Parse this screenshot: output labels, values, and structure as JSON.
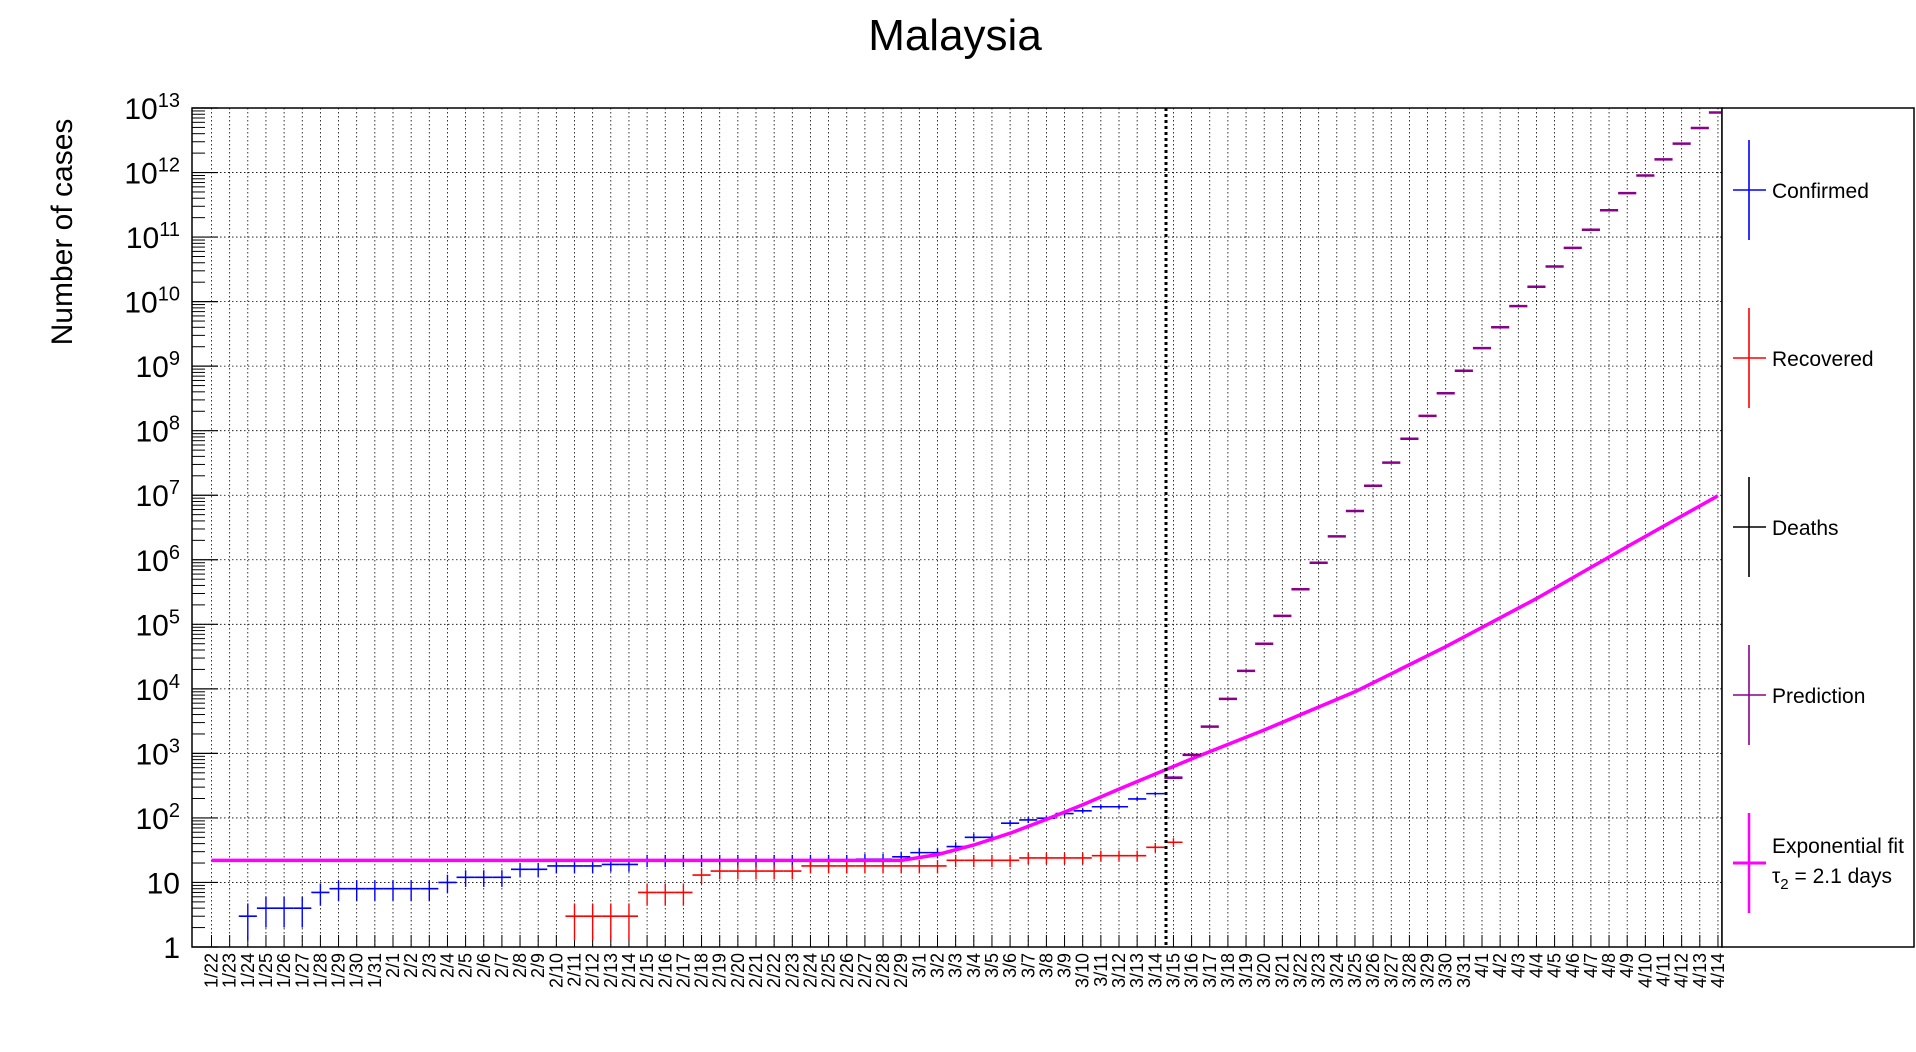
{
  "chart_data": {
    "type": "scatter",
    "title": "Malaysia",
    "ylabel": "Number of cases",
    "xlabel": "",
    "y_scale": "log",
    "ylim": [
      1,
      10000000000000
    ],
    "grid": true,
    "legend_position": "right",
    "y_ticks": [
      {
        "label": "1"
      },
      {
        "label": "10"
      },
      {
        "base": "10",
        "exp": "2"
      },
      {
        "base": "10",
        "exp": "3"
      },
      {
        "base": "10",
        "exp": "4"
      },
      {
        "base": "10",
        "exp": "5"
      },
      {
        "base": "10",
        "exp": "6"
      },
      {
        "base": "10",
        "exp": "7"
      },
      {
        "base": "10",
        "exp": "8"
      },
      {
        "base": "10",
        "exp": "9"
      },
      {
        "base": "10",
        "exp": "10"
      },
      {
        "base": "10",
        "exp": "11"
      },
      {
        "base": "10",
        "exp": "12"
      },
      {
        "base": "10",
        "exp": "13"
      }
    ],
    "x_labels": [
      "1/22",
      "1/23",
      "1/24",
      "1/25",
      "1/26",
      "1/27",
      "1/28",
      "1/29",
      "1/30",
      "1/31",
      "2/1",
      "2/2",
      "2/3",
      "2/4",
      "2/5",
      "2/6",
      "2/7",
      "2/8",
      "2/9",
      "2/10",
      "2/11",
      "2/12",
      "2/13",
      "2/14",
      "2/15",
      "2/16",
      "2/17",
      "2/18",
      "2/19",
      "2/20",
      "2/21",
      "2/22",
      "2/23",
      "2/24",
      "2/25",
      "2/26",
      "2/27",
      "2/28",
      "2/29",
      "3/1",
      "3/2",
      "3/3",
      "3/4",
      "3/5",
      "3/6",
      "3/7",
      "3/8",
      "3/9",
      "3/10",
      "3/11",
      "3/12",
      "3/13",
      "3/14",
      "3/15",
      "3/16",
      "3/17",
      "3/18",
      "3/19",
      "3/20",
      "3/21",
      "3/22",
      "3/23",
      "3/24",
      "3/25",
      "3/26",
      "3/27",
      "3/28",
      "3/29",
      "3/30",
      "3/31",
      "4/1",
      "4/2",
      "4/3",
      "4/4",
      "4/5",
      "4/6",
      "4/7",
      "4/8",
      "4/9",
      "4/10",
      "4/11",
      "4/12",
      "4/13",
      "4/14"
    ],
    "cutoff_date": "3/15",
    "series": [
      {
        "name": "Confirmed",
        "color": "#0000ff",
        "points": [
          [
            "1/24",
            3
          ],
          [
            "1/25",
            4
          ],
          [
            "1/26",
            4
          ],
          [
            "1/27",
            4
          ],
          [
            "1/28",
            7
          ],
          [
            "1/29",
            8
          ],
          [
            "1/30",
            8
          ],
          [
            "1/31",
            8
          ],
          [
            "2/1",
            8
          ],
          [
            "2/2",
            8
          ],
          [
            "2/3",
            8
          ],
          [
            "2/4",
            10
          ],
          [
            "2/5",
            12
          ],
          [
            "2/6",
            12
          ],
          [
            "2/7",
            12
          ],
          [
            "2/8",
            16
          ],
          [
            "2/9",
            16
          ],
          [
            "2/10",
            18
          ],
          [
            "2/11",
            18
          ],
          [
            "2/12",
            18
          ],
          [
            "2/13",
            19
          ],
          [
            "2/14",
            19
          ],
          [
            "2/15",
            22
          ],
          [
            "2/16",
            22
          ],
          [
            "2/17",
            22
          ],
          [
            "2/18",
            22
          ],
          [
            "2/19",
            22
          ],
          [
            "2/20",
            22
          ],
          [
            "2/21",
            22
          ],
          [
            "2/22",
            22
          ],
          [
            "2/23",
            22
          ],
          [
            "2/24",
            22
          ],
          [
            "2/25",
            22
          ],
          [
            "2/26",
            22
          ],
          [
            "2/27",
            23
          ],
          [
            "2/28",
            23
          ],
          [
            "2/29",
            25
          ],
          [
            "3/1",
            29
          ],
          [
            "3/2",
            29
          ],
          [
            "3/3",
            36
          ],
          [
            "3/4",
            50
          ],
          [
            "3/5",
            50
          ],
          [
            "3/6",
            83
          ],
          [
            "3/7",
            93
          ],
          [
            "3/8",
            99
          ],
          [
            "3/9",
            117
          ],
          [
            "3/10",
            129
          ],
          [
            "3/11",
            149
          ],
          [
            "3/12",
            149
          ],
          [
            "3/13",
            197
          ],
          [
            "3/14",
            238
          ],
          [
            "3/15",
            428
          ]
        ]
      },
      {
        "name": "Recovered",
        "color": "#ff0000",
        "points": [
          [
            "2/11",
            3
          ],
          [
            "2/12",
            3
          ],
          [
            "2/13",
            3
          ],
          [
            "2/14",
            3
          ],
          [
            "2/15",
            7
          ],
          [
            "2/16",
            7
          ],
          [
            "2/17",
            7
          ],
          [
            "2/18",
            13
          ],
          [
            "2/19",
            15
          ],
          [
            "2/20",
            15
          ],
          [
            "2/21",
            15
          ],
          [
            "2/22",
            15
          ],
          [
            "2/23",
            15
          ],
          [
            "2/24",
            18
          ],
          [
            "2/25",
            18
          ],
          [
            "2/26",
            18
          ],
          [
            "2/27",
            18
          ],
          [
            "2/28",
            18
          ],
          [
            "2/29",
            18
          ],
          [
            "3/1",
            18
          ],
          [
            "3/2",
            18
          ],
          [
            "3/3",
            22
          ],
          [
            "3/4",
            22
          ],
          [
            "3/5",
            22
          ],
          [
            "3/6",
            22
          ],
          [
            "3/7",
            24
          ],
          [
            "3/8",
            24
          ],
          [
            "3/9",
            24
          ],
          [
            "3/10",
            24
          ],
          [
            "3/11",
            26
          ],
          [
            "3/12",
            26
          ],
          [
            "3/13",
            26
          ],
          [
            "3/14",
            35
          ],
          [
            "3/15",
            42
          ]
        ]
      },
      {
        "name": "Deaths",
        "color": "#000000",
        "points": []
      },
      {
        "name": "Prediction",
        "color": "#8b008b",
        "points": [
          [
            "3/15",
            420
          ],
          [
            "3/16",
            950
          ],
          [
            "3/17",
            2600
          ],
          [
            "3/18",
            7000
          ],
          [
            "3/19",
            19000
          ],
          [
            "3/20",
            50000
          ],
          [
            "3/21",
            135000
          ],
          [
            "3/22",
            350000
          ],
          [
            "3/23",
            900000
          ],
          [
            "3/24",
            2300000
          ],
          [
            "3/25",
            5700000
          ],
          [
            "3/26",
            14000000
          ],
          [
            "3/27",
            32000000
          ],
          [
            "3/28",
            75000000
          ],
          [
            "3/29",
            170000000
          ],
          [
            "3/30",
            380000000
          ],
          [
            "3/31",
            850000000
          ],
          [
            "4/1",
            1900000000
          ],
          [
            "4/2",
            4000000000
          ],
          [
            "4/3",
            8500000000
          ],
          [
            "4/4",
            17000000000
          ],
          [
            "4/5",
            35000000000
          ],
          [
            "4/6",
            68000000000
          ],
          [
            "4/7",
            130000000000
          ],
          [
            "4/8",
            260000000000
          ],
          [
            "4/9",
            480000000000
          ],
          [
            "4/10",
            900000000000
          ],
          [
            "4/11",
            1600000000000
          ],
          [
            "4/12",
            2800000000000
          ],
          [
            "4/13",
            4900000000000
          ],
          [
            "4/14",
            8500000000000
          ]
        ]
      },
      {
        "name": "Exponential fit",
        "color": "#ff00ff",
        "fit_label": "τ",
        "fit_subscript": "2",
        "fit_value": " = 2.1 days",
        "points": [
          [
            "1/22",
            22
          ],
          [
            "2/29",
            22
          ],
          [
            "3/2",
            27
          ],
          [
            "3/4",
            38
          ],
          [
            "3/6",
            58
          ],
          [
            "3/8",
            95
          ],
          [
            "3/10",
            160
          ],
          [
            "3/12",
            280
          ],
          [
            "3/14",
            480
          ],
          [
            "3/16",
            820
          ],
          [
            "3/20",
            2300
          ],
          [
            "3/25",
            9000
          ],
          [
            "3/30",
            45000
          ],
          [
            "4/4",
            250000
          ],
          [
            "4/9",
            1600000
          ],
          [
            "4/14",
            9800000
          ]
        ]
      }
    ]
  }
}
